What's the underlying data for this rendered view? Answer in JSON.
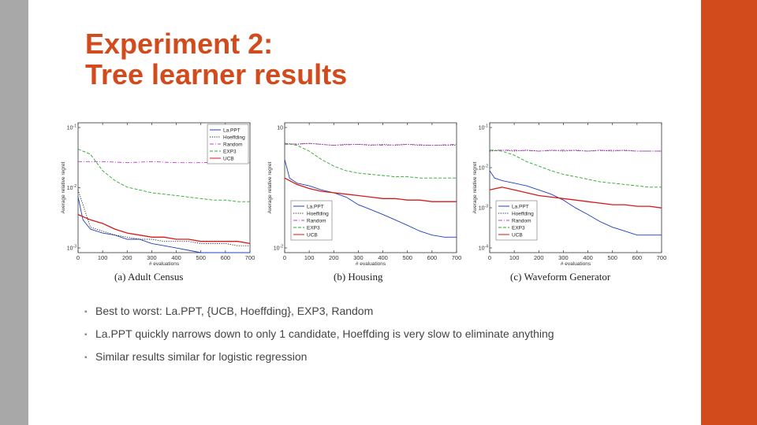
{
  "slide": {
    "title_line1": "Experiment 2:",
    "title_line2": "Tree learner results",
    "accent_color": "#d24b1c",
    "left_bar_color": "#a8a8a8"
  },
  "bullets": [
    "Best to worst: La.PPT, {UCB, Hoeffding}, EXP3, Random",
    "La.PPT quickly narrows down to only 1 candidate, Hoeffding is very slow to eliminate anything",
    "Similar results similar for logistic regression"
  ],
  "chart_data": [
    {
      "type": "line",
      "caption": "(a) Adult Census",
      "xlabel": "# evaluations",
      "ylabel": "Average relative regret",
      "xlim": [
        0,
        700
      ],
      "x_ticks": [
        0,
        100,
        200,
        300,
        400,
        500,
        600,
        700
      ],
      "y_scale": "log",
      "ylim": [
        0.05,
        0.15
      ],
      "y_tick_labels": [
        "10^-1",
        "10^-2",
        "10^-3"
      ],
      "legend_position": "top-right",
      "series": [
        {
          "name": "La.PPT",
          "color": "#1f3fbf",
          "style": "solid",
          "x": [
            0,
            20,
            50,
            100,
            150,
            200,
            250,
            300,
            350,
            400,
            450,
            500,
            550,
            600,
            650,
            700
          ],
          "y": [
            0.08,
            0.066,
            0.061,
            0.059,
            0.058,
            0.056,
            0.056,
            0.054,
            0.053,
            0.052,
            0.051,
            0.05,
            0.05,
            0.05,
            0.05,
            0.05
          ]
        },
        {
          "name": "Hoeffding",
          "color": "#222222",
          "style": "dotted",
          "x": [
            0,
            50,
            100,
            150,
            200,
            250,
            300,
            350,
            400,
            450,
            500,
            550,
            600,
            650,
            700
          ],
          "y": [
            0.085,
            0.062,
            0.06,
            0.058,
            0.057,
            0.056,
            0.056,
            0.055,
            0.055,
            0.055,
            0.054,
            0.054,
            0.054,
            0.053,
            0.053
          ]
        },
        {
          "name": "Random",
          "color": "#c23bd4",
          "style": "dashdot",
          "x": [
            0,
            100,
            200,
            300,
            400,
            500,
            600,
            700
          ],
          "y": [
            0.108,
            0.108,
            0.107,
            0.108,
            0.107,
            0.107,
            0.108,
            0.107
          ]
        },
        {
          "name": "EXP3",
          "color": "#2aa82a",
          "style": "dashed",
          "x": [
            0,
            50,
            100,
            150,
            200,
            250,
            300,
            350,
            400,
            450,
            500,
            550,
            600,
            650,
            700
          ],
          "y": [
            0.12,
            0.115,
            0.1,
            0.092,
            0.087,
            0.085,
            0.083,
            0.082,
            0.081,
            0.08,
            0.079,
            0.078,
            0.078,
            0.077,
            0.077
          ]
        },
        {
          "name": "UCB",
          "color": "#d61a1a",
          "style": "solid",
          "x": [
            0,
            50,
            100,
            150,
            200,
            250,
            300,
            350,
            400,
            450,
            500,
            550,
            600,
            650,
            700
          ],
          "y": [
            0.069,
            0.066,
            0.064,
            0.061,
            0.059,
            0.058,
            0.057,
            0.057,
            0.056,
            0.056,
            0.055,
            0.055,
            0.055,
            0.055,
            0.054
          ]
        }
      ]
    },
    {
      "type": "line",
      "caption": "(b) Housing",
      "xlabel": "# evaluations",
      "ylabel": "Average relative regret",
      "xlim": [
        0,
        700
      ],
      "x_ticks": [
        0,
        100,
        200,
        300,
        400,
        500,
        600,
        700
      ],
      "y_scale": "log",
      "ylim": [
        0.05,
        0.15
      ],
      "y_tick_labels": [
        "10",
        "10^-2"
      ],
      "legend_position": "bottom-left",
      "series": [
        {
          "name": "La.PPT",
          "color": "#1f3fbf",
          "style": "solid",
          "x": [
            0,
            20,
            50,
            100,
            150,
            200,
            250,
            300,
            350,
            400,
            450,
            500,
            550,
            600,
            650,
            700
          ],
          "y": [
            0.11,
            0.094,
            0.09,
            0.088,
            0.085,
            0.083,
            0.08,
            0.075,
            0.072,
            0.069,
            0.066,
            0.063,
            0.06,
            0.058,
            0.057,
            0.057
          ]
        },
        {
          "name": "Hoeffding",
          "color": "#222222",
          "style": "dotted",
          "x": [
            0,
            50,
            100,
            150,
            200,
            250,
            300,
            350,
            400,
            450,
            500,
            550,
            600,
            650,
            700
          ],
          "y": [
            0.126,
            0.125,
            0.126,
            0.125,
            0.124,
            0.125,
            0.125,
            0.124,
            0.125,
            0.124,
            0.125,
            0.124,
            0.124,
            0.124,
            0.124
          ]
        },
        {
          "name": "Random",
          "color": "#c23bd4",
          "style": "dashdot",
          "x": [
            0,
            100,
            200,
            300,
            400,
            500,
            600,
            700
          ],
          "y": [
            0.125,
            0.126,
            0.124,
            0.125,
            0.124,
            0.125,
            0.124,
            0.125
          ]
        },
        {
          "name": "EXP3",
          "color": "#2aa82a",
          "style": "dashed",
          "x": [
            0,
            50,
            100,
            150,
            200,
            250,
            300,
            350,
            400,
            450,
            500,
            550,
            600,
            650,
            700
          ],
          "y": [
            0.126,
            0.124,
            0.118,
            0.11,
            0.104,
            0.1,
            0.098,
            0.097,
            0.096,
            0.095,
            0.095,
            0.094,
            0.094,
            0.094,
            0.094
          ]
        },
        {
          "name": "UCB",
          "color": "#d61a1a",
          "style": "solid",
          "x": [
            0,
            50,
            100,
            150,
            200,
            250,
            300,
            350,
            400,
            450,
            500,
            550,
            600,
            650,
            700
          ],
          "y": [
            0.094,
            0.089,
            0.086,
            0.084,
            0.083,
            0.082,
            0.081,
            0.08,
            0.079,
            0.079,
            0.078,
            0.078,
            0.077,
            0.077,
            0.077
          ]
        }
      ]
    },
    {
      "type": "line",
      "caption": "(c) Waveform Generator",
      "xlabel": "# evaluations",
      "ylabel": "Average relative regret",
      "xlim": [
        0,
        700
      ],
      "x_ticks": [
        0,
        100,
        200,
        300,
        400,
        500,
        600,
        700
      ],
      "y_scale": "log",
      "ylim": [
        0.05,
        0.15
      ],
      "y_tick_labels": [
        "10^-1",
        "10^-2",
        "10^-3",
        "10^-4"
      ],
      "legend_position": "bottom-left",
      "series": [
        {
          "name": "La.PPT",
          "color": "#1f3fbf",
          "style": "solid",
          "x": [
            0,
            20,
            50,
            100,
            150,
            200,
            250,
            300,
            350,
            400,
            450,
            500,
            550,
            600,
            650,
            700
          ],
          "y": [
            0.1,
            0.094,
            0.092,
            0.09,
            0.088,
            0.085,
            0.082,
            0.078,
            0.073,
            0.069,
            0.065,
            0.062,
            0.06,
            0.058,
            0.058,
            0.058
          ]
        },
        {
          "name": "Hoeffding",
          "color": "#222222",
          "style": "dotted",
          "x": [
            0,
            50,
            100,
            150,
            200,
            250,
            300,
            350,
            400,
            450,
            500,
            550,
            600,
            650,
            700
          ],
          "y": [
            0.118,
            0.119,
            0.118,
            0.119,
            0.118,
            0.119,
            0.118,
            0.119,
            0.118,
            0.119,
            0.118,
            0.119,
            0.118,
            0.118,
            0.118
          ]
        },
        {
          "name": "Random",
          "color": "#c23bd4",
          "style": "dashdot",
          "x": [
            0,
            100,
            200,
            300,
            400,
            500,
            600,
            700
          ],
          "y": [
            0.119,
            0.119,
            0.118,
            0.119,
            0.118,
            0.119,
            0.118,
            0.118
          ]
        },
        {
          "name": "EXP3",
          "color": "#2aa82a",
          "style": "dashed",
          "x": [
            0,
            50,
            100,
            150,
            200,
            250,
            300,
            350,
            400,
            450,
            500,
            550,
            600,
            650,
            700
          ],
          "y": [
            0.119,
            0.118,
            0.114,
            0.108,
            0.104,
            0.1,
            0.097,
            0.095,
            0.093,
            0.091,
            0.09,
            0.089,
            0.088,
            0.087,
            0.087
          ]
        },
        {
          "name": "UCB",
          "color": "#d61a1a",
          "style": "solid",
          "x": [
            0,
            50,
            100,
            150,
            200,
            250,
            300,
            350,
            400,
            450,
            500,
            550,
            600,
            650,
            700
          ],
          "y": [
            0.085,
            0.087,
            0.085,
            0.083,
            0.081,
            0.08,
            0.079,
            0.078,
            0.077,
            0.076,
            0.075,
            0.075,
            0.074,
            0.074,
            0.073
          ]
        }
      ]
    }
  ]
}
